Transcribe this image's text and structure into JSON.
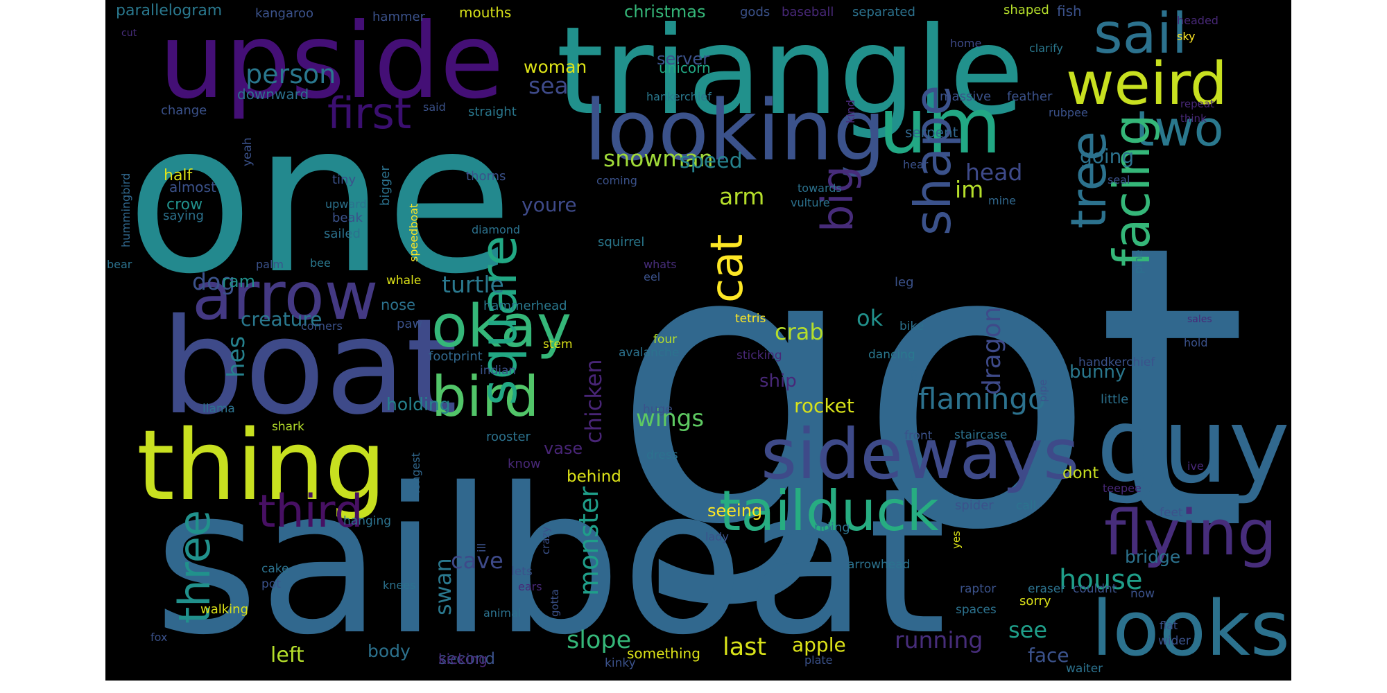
{
  "words": [
    {
      "text": "got",
      "color": "#31688e"
    },
    {
      "text": "sailboat",
      "color": "#31688e"
    },
    {
      "text": "one",
      "color": "#23898e"
    },
    {
      "text": "triangle",
      "color": "#21918c"
    },
    {
      "text": "boat",
      "color": "#3e4a89"
    },
    {
      "text": "upside",
      "color": "#440f76"
    },
    {
      "text": "thing",
      "color": "#c8e020"
    },
    {
      "text": "guy",
      "color": "#31688e"
    },
    {
      "text": "looking",
      "color": "#3b528b"
    },
    {
      "text": "sideways",
      "color": "#3e4a89"
    },
    {
      "text": "looks",
      "color": "#2c728e"
    },
    {
      "text": "um",
      "color": "#22a884"
    },
    {
      "text": "arrow",
      "color": "#443983"
    },
    {
      "text": "sail",
      "color": "#2c728e"
    },
    {
      "text": "weird",
      "color": "#c8e020"
    },
    {
      "text": "flying",
      "color": "#472d7b"
    },
    {
      "text": "tailduck",
      "color": "#27ad81"
    },
    {
      "text": "okay",
      "color": "#35b779"
    },
    {
      "text": "bird",
      "color": "#52c569"
    },
    {
      "text": "two",
      "color": "#2a788e"
    },
    {
      "text": "square",
      "color": "#22a884"
    },
    {
      "text": "facing",
      "color": "#35b779"
    },
    {
      "text": "first",
      "color": "#3b0f70"
    },
    {
      "text": "tree",
      "color": "#2c728e"
    },
    {
      "text": "shape",
      "color": "#3b528b"
    },
    {
      "text": "third",
      "color": "#471063"
    },
    {
      "text": "three",
      "color": "#21918c"
    },
    {
      "text": "cat",
      "color": "#fde725"
    },
    {
      "text": "big",
      "color": "#472c7a"
    },
    {
      "text": "flamingo",
      "color": "#2c728e"
    },
    {
      "text": "house",
      "color": "#1f9e89"
    },
    {
      "text": "person",
      "color": "#2a788e"
    },
    {
      "text": "snowman",
      "color": "#a0da39"
    },
    {
      "text": "turtle",
      "color": "#2a788e"
    },
    {
      "text": "sea",
      "color": "#3e4a89"
    },
    {
      "text": "woman",
      "color": "#dde318"
    },
    {
      "text": "server",
      "color": "#3b528b"
    },
    {
      "text": "unicorn",
      "color": "#22a884"
    },
    {
      "text": "speed",
      "color": "#26828e"
    },
    {
      "text": "arm",
      "color": "#b5de2b"
    },
    {
      "text": "im",
      "color": "#b5de2b"
    },
    {
      "text": "head",
      "color": "#3e4a89"
    },
    {
      "text": "going",
      "color": "#2c728e"
    },
    {
      "text": "dragon",
      "color": "#3e4a89"
    },
    {
      "text": "crab",
      "color": "#b5de2b"
    },
    {
      "text": "ok",
      "color": "#21918c"
    },
    {
      "text": "wings",
      "color": "#5ec962"
    },
    {
      "text": "rocket",
      "color": "#d8e219"
    },
    {
      "text": "ship",
      "color": "#482878"
    },
    {
      "text": "bunny",
      "color": "#2a788e"
    },
    {
      "text": "monster",
      "color": "#1f9e89"
    },
    {
      "text": "chicken",
      "color": "#482576"
    },
    {
      "text": "youre",
      "color": "#3e4a89"
    },
    {
      "text": "dog",
      "color": "#3b528b"
    },
    {
      "text": "ram",
      "color": "#21918c"
    },
    {
      "text": "creature",
      "color": "#2a788e"
    },
    {
      "text": "hes",
      "color": "#26828e"
    },
    {
      "text": "cave",
      "color": "#3e4a89"
    },
    {
      "text": "swan",
      "color": "#2a788e"
    },
    {
      "text": "slope",
      "color": "#35b779"
    },
    {
      "text": "left",
      "color": "#b5de2b"
    },
    {
      "text": "body",
      "color": "#2c728e"
    },
    {
      "text": "second",
      "color": "#3b528b"
    },
    {
      "text": "last",
      "color": "#d8e219"
    },
    {
      "text": "apple",
      "color": "#dde318"
    },
    {
      "text": "running",
      "color": "#472d7b"
    },
    {
      "text": "see",
      "color": "#1f9e89"
    },
    {
      "text": "face",
      "color": "#3b528b"
    },
    {
      "text": "bridge",
      "color": "#2c728e"
    },
    {
      "text": "holding",
      "color": "#26828e"
    },
    {
      "text": "vase",
      "color": "#482576"
    },
    {
      "text": "behind",
      "color": "#dde318"
    },
    {
      "text": "seeing",
      "color": "#fde725"
    },
    {
      "text": "dont",
      "color": "#c8e020"
    },
    {
      "text": "christmas",
      "color": "#35b779"
    },
    {
      "text": "parallelogram",
      "color": "#2a788e"
    },
    {
      "text": "kangaroo",
      "color": "#3b528b"
    },
    {
      "text": "hammer",
      "color": "#3b528b"
    },
    {
      "text": "mouths",
      "color": "#d8e219"
    },
    {
      "text": "gods",
      "color": "#3b528b"
    },
    {
      "text": "baseball",
      "color": "#482878"
    },
    {
      "text": "separated",
      "color": "#2c728e"
    },
    {
      "text": "shaped",
      "color": "#b5de2b"
    },
    {
      "text": "fish",
      "color": "#3b528b"
    },
    {
      "text": "headed",
      "color": "#482878"
    },
    {
      "text": "sky",
      "color": "#fde725"
    },
    {
      "text": "home",
      "color": "#3e4a89"
    },
    {
      "text": "clarify",
      "color": "#2a788e"
    },
    {
      "text": "cut",
      "color": "#472d7b"
    },
    {
      "text": "hankerchief",
      "color": "#2a788e"
    },
    {
      "text": "massive",
      "color": "#3b528b"
    },
    {
      "text": "feather",
      "color": "#3b528b"
    },
    {
      "text": "downward",
      "color": "#2c728e"
    },
    {
      "text": "change",
      "color": "#3b528b"
    },
    {
      "text": "said",
      "color": "#3b528b"
    },
    {
      "text": "straight",
      "color": "#2a788e"
    },
    {
      "text": "rubpee",
      "color": "#3b528b"
    },
    {
      "text": "repeat",
      "color": "#482878"
    },
    {
      "text": "think",
      "color": "#482878"
    },
    {
      "text": "serpent",
      "color": "#31688e"
    },
    {
      "text": "hummingbird",
      "color": "#31688e"
    },
    {
      "text": "bigger",
      "color": "#2c728e"
    },
    {
      "text": "half",
      "color": "#dde318"
    },
    {
      "text": "almost",
      "color": "#3b528b"
    },
    {
      "text": "crow",
      "color": "#21918c"
    },
    {
      "text": "saying",
      "color": "#2c728e"
    },
    {
      "text": "tiny",
      "color": "#3b528b"
    },
    {
      "text": "upward",
      "color": "#2c728e"
    },
    {
      "text": "beak",
      "color": "#3b528b"
    },
    {
      "text": "sailed",
      "color": "#2c728e"
    },
    {
      "text": "thorns",
      "color": "#3b528b"
    },
    {
      "text": "speedboat",
      "color": "#fde725"
    },
    {
      "text": "diamond",
      "color": "#2c728e"
    },
    {
      "text": "coming",
      "color": "#3b528b"
    },
    {
      "text": "towards",
      "color": "#2c728e"
    },
    {
      "text": "vulture",
      "color": "#2c728e"
    },
    {
      "text": "kind",
      "color": "#482878"
    },
    {
      "text": "hear",
      "color": "#3b528b"
    },
    {
      "text": "seal",
      "color": "#3b528b"
    },
    {
      "text": "mine",
      "color": "#31688e"
    },
    {
      "text": "yeah",
      "color": "#3b528b"
    },
    {
      "text": "bear",
      "color": "#2c728e"
    },
    {
      "text": "palm",
      "color": "#3b528b"
    },
    {
      "text": "bee",
      "color": "#2a788e"
    },
    {
      "text": "squirrel",
      "color": "#2a788e"
    },
    {
      "text": "whats",
      "color": "#472d7b"
    },
    {
      "text": "eel",
      "color": "#3b528b"
    },
    {
      "text": "whale",
      "color": "#dde318"
    },
    {
      "text": "hammerhead",
      "color": "#2a788e"
    },
    {
      "text": "leg",
      "color": "#3b528b"
    },
    {
      "text": "pine",
      "color": "#2c728e"
    },
    {
      "text": "sales",
      "color": "#482878"
    },
    {
      "text": "hold",
      "color": "#3b528b"
    },
    {
      "text": "handkerchief",
      "color": "#3b528b"
    },
    {
      "text": "little",
      "color": "#2c728e"
    },
    {
      "text": "nose",
      "color": "#2c728e"
    },
    {
      "text": "paw",
      "color": "#3b528b"
    },
    {
      "text": "corners",
      "color": "#3b528b"
    },
    {
      "text": "stem",
      "color": "#dde318"
    },
    {
      "text": "tetris",
      "color": "#fde725"
    },
    {
      "text": "bike",
      "color": "#2c728e"
    },
    {
      "text": "four",
      "color": "#b5de2b"
    },
    {
      "text": "avalanche",
      "color": "#2c728e"
    },
    {
      "text": "sticking",
      "color": "#482878"
    },
    {
      "text": "dancing",
      "color": "#2a788e"
    },
    {
      "text": "footprint",
      "color": "#31688e"
    },
    {
      "text": "indian",
      "color": "#3b528b"
    },
    {
      "text": "open",
      "color": "#31688e"
    },
    {
      "text": "pipe",
      "color": "#3b528b"
    },
    {
      "text": "llama",
      "color": "#2c728e"
    },
    {
      "text": "shark",
      "color": "#b5de2b"
    },
    {
      "text": "huge",
      "color": "#3b528b"
    },
    {
      "text": "rooster",
      "color": "#2c728e"
    },
    {
      "text": "dress",
      "color": "#2c728e"
    },
    {
      "text": "front",
      "color": "#3b528b"
    },
    {
      "text": "staircase",
      "color": "#2c728e"
    },
    {
      "text": "longest",
      "color": "#31688e"
    },
    {
      "text": "know",
      "color": "#482878"
    },
    {
      "text": "spider",
      "color": "#3b528b"
    },
    {
      "text": "call",
      "color": "#2c728e"
    },
    {
      "text": "teepee",
      "color": "#482878"
    },
    {
      "text": "feet",
      "color": "#3b528b"
    },
    {
      "text": "ive",
      "color": "#482878"
    },
    {
      "text": "hanging",
      "color": "#2c728e"
    },
    {
      "text": "ill",
      "color": "#3b528b"
    },
    {
      "text": "crazy",
      "color": "#3b528b"
    },
    {
      "text": "riding",
      "color": "#2c728e"
    },
    {
      "text": "lady",
      "color": "#3b528b"
    },
    {
      "text": "yes",
      "color": "#dde318"
    },
    {
      "text": "cake",
      "color": "#2c728e"
    },
    {
      "text": "pot",
      "color": "#3b528b"
    },
    {
      "text": "lets",
      "color": "#3b528b"
    },
    {
      "text": "knees",
      "color": "#2c728e"
    },
    {
      "text": "ears",
      "color": "#482878"
    },
    {
      "text": "gotta",
      "color": "#3b528b"
    },
    {
      "text": "arrowhead",
      "color": "#2c728e"
    },
    {
      "text": "raptor",
      "color": "#3b528b"
    },
    {
      "text": "eraser",
      "color": "#2c728e"
    },
    {
      "text": "couldnt",
      "color": "#3b528b"
    },
    {
      "text": "now",
      "color": "#3b528b"
    },
    {
      "text": "walking",
      "color": "#dde318"
    },
    {
      "text": "animal",
      "color": "#2c728e"
    },
    {
      "text": "sorry",
      "color": "#dde318"
    },
    {
      "text": "spaces",
      "color": "#2c728e"
    },
    {
      "text": "flat",
      "color": "#3b528b"
    },
    {
      "text": "wider",
      "color": "#3b528b"
    },
    {
      "text": "fox",
      "color": "#3b528b"
    },
    {
      "text": "kicking",
      "color": "#482878"
    },
    {
      "text": "kinky",
      "color": "#3b528b"
    },
    {
      "text": "something",
      "color": "#dde318"
    },
    {
      "text": "plate",
      "color": "#3b528b"
    },
    {
      "text": "waiter",
      "color": "#2c728e"
    }
  ]
}
